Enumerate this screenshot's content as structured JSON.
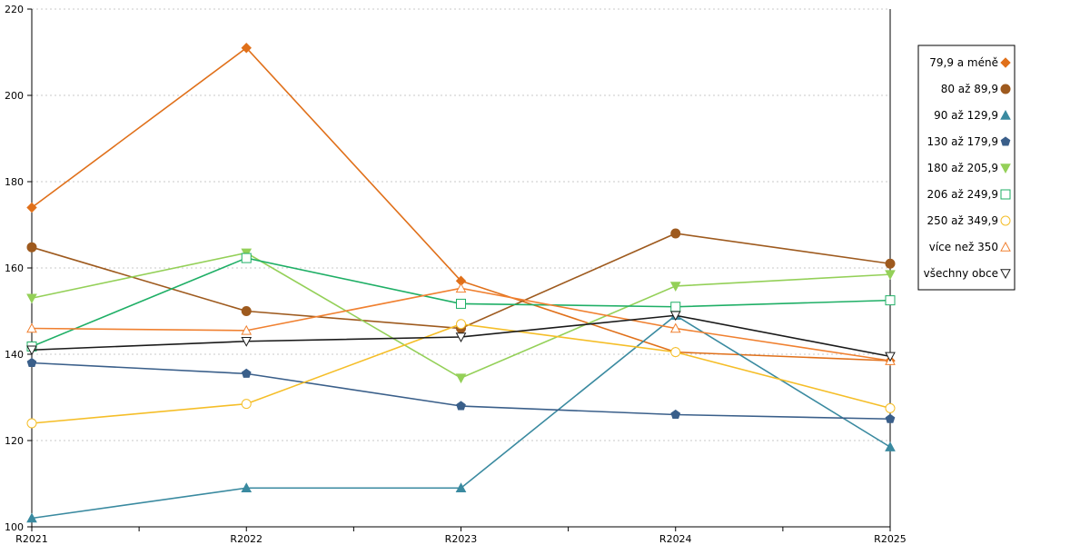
{
  "chart_data": {
    "type": "line",
    "categories": [
      "R2021",
      "R2022",
      "R2023",
      "R2024",
      "R2025"
    ],
    "ylim": [
      100,
      220
    ],
    "yticks": [
      100,
      120,
      140,
      160,
      180,
      200,
      220
    ],
    "grid": true,
    "legend_position": "right",
    "series": [
      {
        "name": "79,9 a méně",
        "values": [
          174,
          211,
          157,
          140.5,
          138.5
        ],
        "color": "#E0701A",
        "marker": "diamond",
        "filled": true
      },
      {
        "name": "80 až 89,9",
        "values": [
          164.8,
          150,
          146,
          168,
          161
        ],
        "color": "#9E5A1E",
        "marker": "circle",
        "filled": true
      },
      {
        "name": "90 až 129,9",
        "values": [
          102,
          109,
          109,
          149,
          118.5
        ],
        "color": "#3A8AA0",
        "marker": "triangle-up",
        "filled": true
      },
      {
        "name": "130 až 179,9",
        "values": [
          138,
          135.5,
          128,
          126,
          125
        ],
        "color": "#3A5F8A",
        "marker": "pentagon",
        "filled": true
      },
      {
        "name": "180 až 205,9",
        "values": [
          153,
          163.5,
          134.5,
          155.8,
          158.5
        ],
        "color": "#94D058",
        "marker": "triangle-down",
        "filled": true
      },
      {
        "name": "206 až 249,9",
        "values": [
          141.8,
          162.3,
          151.7,
          151,
          152.5
        ],
        "color": "#1FAF66",
        "marker": "square",
        "filled": false
      },
      {
        "name": "250 až 349,9",
        "values": [
          124,
          128.5,
          147,
          140.5,
          127.5
        ],
        "color": "#F5BE28",
        "marker": "circle",
        "filled": false
      },
      {
        "name": "více než 350",
        "values": [
          146,
          145.5,
          155.3,
          146,
          138.5
        ],
        "color": "#F08030",
        "marker": "triangle-up",
        "filled": false
      },
      {
        "name": "všechny obce",
        "values": [
          141,
          143,
          144,
          149,
          139.5
        ],
        "color": "#1A1A1A",
        "marker": "triangle-down",
        "filled": false
      }
    ]
  }
}
